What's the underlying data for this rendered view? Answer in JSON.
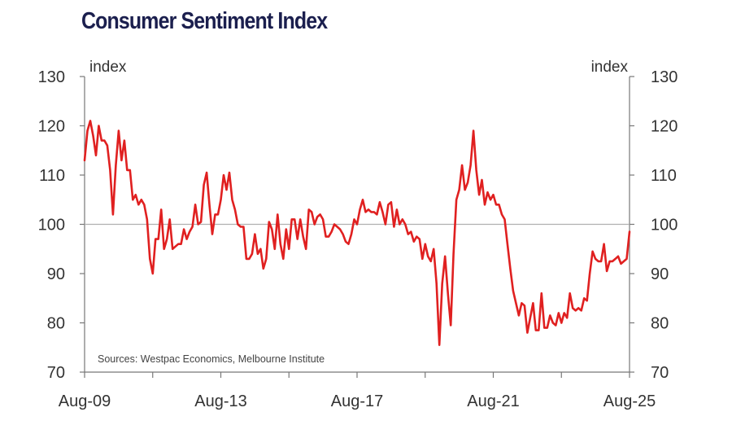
{
  "colors": {
    "title": "#1b1f4e",
    "series": "#e02020",
    "axis": "#777777",
    "text": "#333333",
    "reference_line": "#b0b0b0"
  },
  "chart_data": {
    "type": "line",
    "title": "Consumer Sentiment Index",
    "ylabel_left": "index",
    "ylabel_right": "index",
    "source": "Sources: Westpac Economics, Melbourne Institute",
    "ylim": [
      70,
      130
    ],
    "yticks": [
      70,
      80,
      90,
      100,
      110,
      120,
      130
    ],
    "xlim": [
      "2009-08",
      "2025-08"
    ],
    "xtick_labels": [
      {
        "date": "2009-08",
        "label": "Aug-09"
      },
      {
        "date": "2013-08",
        "label": "Aug-13"
      },
      {
        "date": "2017-08",
        "label": "Aug-17"
      },
      {
        "date": "2021-08",
        "label": "Aug-21"
      },
      {
        "date": "2025-08",
        "label": "Aug-25"
      }
    ],
    "minor_xticks": [
      "2011-08",
      "2015-08",
      "2019-08",
      "2023-08"
    ],
    "reference_line": 100,
    "grid": false,
    "series": [
      {
        "points": [
          [
            "2009-08",
            113
          ],
          [
            "2009-09",
            119
          ],
          [
            "2009-10",
            121
          ],
          [
            "2009-11",
            118
          ],
          [
            "2009-12",
            114
          ],
          [
            "2010-01",
            120
          ],
          [
            "2010-02",
            117
          ],
          [
            "2010-03",
            117
          ],
          [
            "2010-04",
            116
          ],
          [
            "2010-05",
            111
          ],
          [
            "2010-06",
            102
          ],
          [
            "2010-07",
            112
          ],
          [
            "2010-08",
            119
          ],
          [
            "2010-09",
            113
          ],
          [
            "2010-10",
            117
          ],
          [
            "2010-11",
            111
          ],
          [
            "2010-12",
            111
          ],
          [
            "2011-01",
            105
          ],
          [
            "2011-02",
            106
          ],
          [
            "2011-03",
            104
          ],
          [
            "2011-04",
            105
          ],
          [
            "2011-05",
            104
          ],
          [
            "2011-06",
            101
          ],
          [
            "2011-07",
            93
          ],
          [
            "2011-08",
            90
          ],
          [
            "2011-09",
            97
          ],
          [
            "2011-10",
            97
          ],
          [
            "2011-11",
            103
          ],
          [
            "2011-12",
            95
          ],
          [
            "2012-01",
            97
          ],
          [
            "2012-02",
            101
          ],
          [
            "2012-03",
            95
          ],
          [
            "2012-04",
            95.5
          ],
          [
            "2012-05",
            96
          ],
          [
            "2012-06",
            96
          ],
          [
            "2012-07",
            99
          ],
          [
            "2012-08",
            97
          ],
          [
            "2012-09",
            98.5
          ],
          [
            "2012-10",
            99.5
          ],
          [
            "2012-11",
            104
          ],
          [
            "2012-12",
            100
          ],
          [
            "2013-01",
            100.5
          ],
          [
            "2013-02",
            108
          ],
          [
            "2013-03",
            110.5
          ],
          [
            "2013-04",
            104
          ],
          [
            "2013-05",
            98
          ],
          [
            "2013-06",
            102
          ],
          [
            "2013-07",
            102
          ],
          [
            "2013-08",
            105
          ],
          [
            "2013-09",
            110
          ],
          [
            "2013-10",
            107
          ],
          [
            "2013-11",
            110.5
          ],
          [
            "2013-12",
            105
          ],
          [
            "2014-01",
            103
          ],
          [
            "2014-02",
            100
          ],
          [
            "2014-03",
            99.5
          ],
          [
            "2014-04",
            99.5
          ],
          [
            "2014-05",
            93
          ],
          [
            "2014-06",
            93
          ],
          [
            "2014-07",
            94
          ],
          [
            "2014-08",
            98
          ],
          [
            "2014-09",
            94
          ],
          [
            "2014-10",
            95
          ],
          [
            "2014-11",
            91
          ],
          [
            "2014-12",
            93
          ],
          [
            "2015-01",
            100.5
          ],
          [
            "2015-02",
            99
          ],
          [
            "2015-03",
            95
          ],
          [
            "2015-04",
            102
          ],
          [
            "2015-05",
            96
          ],
          [
            "2015-06",
            93
          ],
          [
            "2015-07",
            99
          ],
          [
            "2015-08",
            95
          ],
          [
            "2015-09",
            101
          ],
          [
            "2015-10",
            101
          ],
          [
            "2015-11",
            97
          ],
          [
            "2015-12",
            101
          ],
          [
            "2016-01",
            97.5
          ],
          [
            "2016-02",
            95
          ],
          [
            "2016-03",
            103
          ],
          [
            "2016-04",
            102.5
          ],
          [
            "2016-05",
            100
          ],
          [
            "2016-06",
            101.5
          ],
          [
            "2016-07",
            102
          ],
          [
            "2016-08",
            101
          ],
          [
            "2016-09",
            97.5
          ],
          [
            "2016-10",
            97.5
          ],
          [
            "2016-11",
            98.5
          ],
          [
            "2016-12",
            100
          ],
          [
            "2017-01",
            99.5
          ],
          [
            "2017-02",
            99
          ],
          [
            "2017-03",
            98
          ],
          [
            "2017-04",
            96.5
          ],
          [
            "2017-05",
            96
          ],
          [
            "2017-06",
            98
          ],
          [
            "2017-07",
            101
          ],
          [
            "2017-08",
            100
          ],
          [
            "2017-09",
            103
          ],
          [
            "2017-10",
            105
          ],
          [
            "2017-11",
            102.5
          ],
          [
            "2017-12",
            103
          ],
          [
            "2018-01",
            102.5
          ],
          [
            "2018-02",
            102.5
          ],
          [
            "2018-03",
            102
          ],
          [
            "2018-04",
            104.5
          ],
          [
            "2018-05",
            102.5
          ],
          [
            "2018-06",
            100
          ],
          [
            "2018-07",
            104
          ],
          [
            "2018-08",
            104.5
          ],
          [
            "2018-09",
            99.5
          ],
          [
            "2018-10",
            103
          ],
          [
            "2018-11",
            100
          ],
          [
            "2018-12",
            101
          ],
          [
            "2019-01",
            100
          ],
          [
            "2019-02",
            98
          ],
          [
            "2019-03",
            98.5
          ],
          [
            "2019-04",
            96.5
          ],
          [
            "2019-05",
            97.5
          ],
          [
            "2019-06",
            97
          ],
          [
            "2019-07",
            93
          ],
          [
            "2019-08",
            96
          ],
          [
            "2019-09",
            93.5
          ],
          [
            "2019-10",
            92.5
          ],
          [
            "2019-11",
            95
          ],
          [
            "2019-12",
            88
          ],
          [
            "2020-01",
            75.5
          ],
          [
            "2020-02",
            88
          ],
          [
            "2020-03",
            93.5
          ],
          [
            "2020-04",
            86
          ],
          [
            "2020-05",
            79.5
          ],
          [
            "2020-06",
            94
          ],
          [
            "2020-07",
            105
          ],
          [
            "2020-08",
            107
          ],
          [
            "2020-09",
            112
          ],
          [
            "2020-10",
            107
          ],
          [
            "2020-11",
            108.5
          ],
          [
            "2020-12",
            112
          ],
          [
            "2021-01",
            119
          ],
          [
            "2021-02",
            111
          ],
          [
            "2021-03",
            106
          ],
          [
            "2021-04",
            109
          ],
          [
            "2021-05",
            104
          ],
          [
            "2021-06",
            106.5
          ],
          [
            "2021-07",
            105
          ],
          [
            "2021-08",
            106
          ],
          [
            "2021-09",
            104
          ],
          [
            "2021-10",
            104
          ],
          [
            "2021-11",
            102
          ],
          [
            "2021-12",
            101
          ],
          [
            "2022-01",
            96
          ],
          [
            "2022-02",
            91
          ],
          [
            "2022-03",
            86.5
          ],
          [
            "2022-04",
            84
          ],
          [
            "2022-05",
            81.5
          ],
          [
            "2022-06",
            84
          ],
          [
            "2022-07",
            83.5
          ],
          [
            "2022-08",
            78
          ],
          [
            "2022-09",
            81
          ],
          [
            "2022-10",
            84
          ],
          [
            "2022-11",
            78.5
          ],
          [
            "2022-12",
            78.5
          ],
          [
            "2023-01",
            86
          ],
          [
            "2023-02",
            79
          ],
          [
            "2023-03",
            79
          ],
          [
            "2023-04",
            81.5
          ],
          [
            "2023-05",
            80
          ],
          [
            "2023-06",
            79.5
          ],
          [
            "2023-07",
            82
          ],
          [
            "2023-08",
            80
          ],
          [
            "2023-09",
            82
          ],
          [
            "2023-10",
            81
          ],
          [
            "2023-11",
            86
          ],
          [
            "2023-12",
            83
          ],
          [
            "2024-01",
            82.5
          ],
          [
            "2024-02",
            83
          ],
          [
            "2024-03",
            82.5
          ],
          [
            "2024-04",
            85
          ],
          [
            "2024-05",
            84.5
          ],
          [
            "2024-06",
            90
          ],
          [
            "2024-07",
            94.5
          ],
          [
            "2024-08",
            93
          ],
          [
            "2024-09",
            92.5
          ],
          [
            "2024-10",
            92.5
          ],
          [
            "2024-11",
            96
          ],
          [
            "2024-12",
            90.5
          ],
          [
            "2025-01",
            92.5
          ],
          [
            "2025-02",
            92.5
          ],
          [
            "2025-03",
            93
          ],
          [
            "2025-04",
            93.5
          ],
          [
            "2025-05",
            92
          ],
          [
            "2025-06",
            92.5
          ],
          [
            "2025-07",
            93
          ],
          [
            "2025-08",
            98.5
          ]
        ]
      }
    ]
  }
}
